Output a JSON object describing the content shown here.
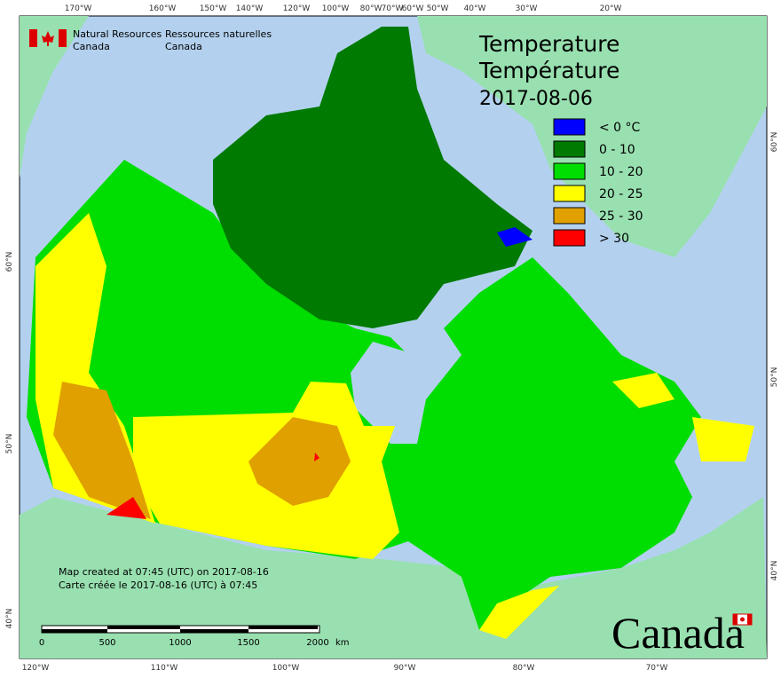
{
  "header": {
    "agency_en": "Natural Resources",
    "agency_en_2": "Canada",
    "agency_fr": "Ressources naturelles",
    "agency_fr_2": "Canada"
  },
  "title": {
    "en": "Temperature",
    "fr": "Température",
    "date": "2017-08-06"
  },
  "legend": [
    {
      "label": "< 0 °C",
      "color": "#0000ff"
    },
    {
      "label": "0 - 10",
      "color": "#007a00"
    },
    {
      "label": "10 - 20",
      "color": "#00dd00"
    },
    {
      "label": "20 - 25",
      "color": "#ffff00"
    },
    {
      "label": "25 - 30",
      "color": "#dfa000"
    },
    {
      "label": "> 30",
      "color": "#ff0000"
    }
  ],
  "top_labels": [
    "170°W",
    "160°W",
    "150°W",
    "140°W",
    "120°W",
    "100°W",
    "80°W",
    "70°W",
    "60°W",
    "50°W",
    "40°W",
    "30°W",
    "20°W"
  ],
  "bottom_labels": [
    "120°W",
    "110°W",
    "100°W",
    "90°W",
    "80°W",
    "70°W"
  ],
  "left_labels": [
    "60°N",
    "50°N",
    "40°N"
  ],
  "right_labels": [
    "60°N",
    "50°N",
    "40°N"
  ],
  "credits": [
    "Map created at 07:45 (UTC) on 2017-08-16",
    "Carte créée le 2017-08-16 (UTC) à 07:45"
  ],
  "scale": {
    "labels": [
      "0",
      "500",
      "1000",
      "1500",
      "2000"
    ],
    "unit": "km"
  },
  "wordmark": "Canada"
}
